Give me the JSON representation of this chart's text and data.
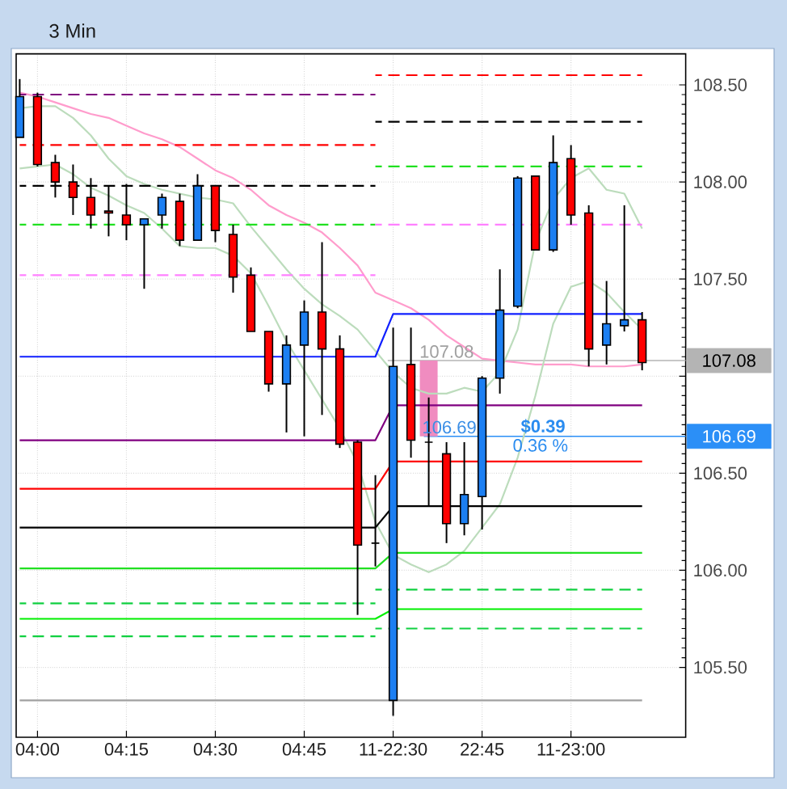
{
  "chart_data": {
    "type": "candlestick",
    "title": "3 Min",
    "categories": [
      null,
      "04:00",
      null,
      null,
      null,
      null,
      "04:15",
      null,
      null,
      null,
      null,
      "04:30",
      null,
      null,
      null,
      null,
      "04:45",
      null,
      null,
      null,
      null,
      "11-22:30",
      null,
      null,
      null,
      null,
      "22:45",
      null,
      null,
      null,
      null,
      "11-23:00",
      null,
      null,
      null,
      null
    ],
    "ohlc": [
      [
        108.23,
        108.53,
        108.23,
        108.44
      ],
      [
        108.44,
        108.46,
        108.08,
        108.09
      ],
      [
        108.1,
        108.14,
        107.92,
        108.0
      ],
      [
        108.0,
        108.09,
        107.83,
        107.92
      ],
      [
        107.92,
        108.02,
        107.76,
        107.83
      ],
      [
        107.85,
        107.98,
        107.72,
        107.84
      ],
      [
        107.83,
        107.99,
        107.7,
        107.78
      ],
      [
        107.78,
        107.81,
        107.45,
        107.81
      ],
      [
        107.83,
        107.94,
        107.76,
        107.92
      ],
      [
        107.9,
        107.94,
        107.67,
        107.7
      ],
      [
        107.7,
        108.04,
        107.7,
        107.98
      ],
      [
        107.98,
        107.98,
        107.69,
        107.75
      ],
      [
        107.73,
        107.78,
        107.43,
        107.51
      ],
      [
        107.52,
        107.56,
        107.23,
        107.23
      ],
      [
        107.23,
        107.23,
        106.92,
        106.96
      ],
      [
        106.96,
        107.21,
        106.71,
        107.16
      ],
      [
        107.16,
        107.39,
        106.69,
        107.33
      ],
      [
        107.33,
        107.69,
        106.8,
        107.14
      ],
      [
        107.14,
        107.21,
        106.63,
        106.65
      ],
      [
        106.66,
        106.67,
        105.77,
        106.13
      ],
      [
        106.14,
        106.49,
        106.02,
        106.14
      ],
      [
        105.33,
        107.25,
        105.25,
        107.05
      ],
      [
        107.06,
        107.25,
        106.58,
        106.67
      ],
      [
        106.66,
        106.89,
        106.33,
        106.66
      ],
      [
        106.6,
        106.66,
        106.14,
        106.24
      ],
      [
        106.24,
        106.66,
        106.18,
        106.39
      ],
      [
        106.38,
        107.0,
        106.21,
        106.99
      ],
      [
        106.99,
        107.55,
        106.91,
        107.34
      ],
      [
        107.36,
        108.03,
        107.35,
        108.02
      ],
      [
        108.03,
        108.03,
        107.65,
        107.65
      ],
      [
        107.65,
        108.24,
        107.64,
        108.1
      ],
      [
        108.12,
        108.19,
        107.78,
        107.83
      ],
      [
        107.84,
        107.88,
        107.05,
        107.14
      ],
      [
        107.16,
        107.49,
        107.06,
        107.27
      ],
      [
        107.26,
        107.88,
        107.23,
        107.29
      ],
      [
        107.29,
        107.33,
        107.03,
        107.07
      ]
    ],
    "colors": [
      "#1c7ff2",
      "#ff0000",
      "#ff0000",
      "#ff0000",
      "#ff0000",
      "#ff0000",
      "#ff0000",
      "#1c7ff2",
      "#1c7ff2",
      "#ff0000",
      "#1c7ff2",
      "#ff0000",
      "#ff0000",
      "#ff0000",
      "#ff0000",
      "#1c7ff2",
      "#1c7ff2",
      "#ff0000",
      "#ff0000",
      "#ff0000",
      "#000000",
      "#1c7ff2",
      "#ff0000",
      "#000000",
      "#ff0000",
      "#1c7ff2",
      "#1c7ff2",
      "#1c7ff2",
      "#1c7ff2",
      "#ff0000",
      "#1c7ff2",
      "#ff0000",
      "#ff0000",
      "#1c7ff2",
      "#1c7ff2",
      "#ff0000"
    ],
    "series": [
      {
        "type": "line",
        "color": "#ff9ccc",
        "line_style": "solid",
        "values": [
          108.46,
          108.44,
          108.41,
          108.38,
          108.35,
          108.33,
          108.29,
          108.25,
          108.22,
          108.18,
          108.12,
          108.06,
          108.02,
          107.96,
          107.88,
          107.83,
          107.79,
          107.74,
          107.66,
          107.57,
          107.43,
          107.39,
          107.35,
          107.29,
          107.21,
          107.15,
          107.09,
          107.08,
          107.07,
          107.06,
          107.06,
          107.06,
          107.05,
          107.05,
          107.05,
          107.06
        ]
      },
      {
        "type": "line",
        "color": "#bcdcbc",
        "line_style": "solid",
        "values": [
          108.38,
          108.39,
          108.39,
          108.33,
          108.24,
          108.12,
          108.03,
          107.99,
          107.96,
          107.94,
          107.92,
          107.91,
          107.89,
          107.77,
          107.66,
          107.55,
          107.45,
          107.37,
          107.31,
          107.24,
          107.13,
          107.02,
          106.94,
          106.91,
          106.91,
          106.94,
          106.92,
          107.02,
          107.24,
          107.69,
          107.91,
          108.02,
          108.07,
          107.96,
          107.94,
          107.76
        ]
      },
      {
        "type": "line",
        "color": "#bcdcbc",
        "line_style": "solid",
        "values": [
          108.07,
          108.08,
          108.09,
          108.04,
          107.97,
          107.93,
          107.88,
          107.84,
          107.76,
          107.67,
          107.66,
          107.66,
          107.62,
          107.53,
          107.36,
          107.18,
          107.03,
          106.88,
          106.73,
          106.55,
          106.25,
          106.08,
          106.03,
          105.99,
          106.03,
          106.1,
          106.22,
          106.34,
          106.58,
          106.9,
          107.27,
          107.46,
          107.49,
          107.43,
          107.33,
          107.24
        ]
      },
      {
        "type": "line",
        "color": "#800080",
        "line_style": "dashed",
        "values": [
          108.45,
          108.45,
          108.45,
          108.45,
          108.45,
          108.45,
          108.45,
          108.45,
          108.45,
          108.45,
          108.45,
          108.45,
          108.45,
          108.45,
          108.45,
          108.45,
          108.45,
          108.45,
          108.45,
          108.45,
          108.45,
          null,
          null,
          null,
          null,
          null,
          null,
          null,
          null,
          null,
          null,
          null,
          null,
          null,
          null,
          null
        ]
      },
      {
        "type": "line",
        "color": "#ff0000",
        "line_style": "dashed",
        "values": [
          108.19,
          108.19,
          108.19,
          108.19,
          108.19,
          108.19,
          108.19,
          108.19,
          108.19,
          108.19,
          108.19,
          108.19,
          108.19,
          108.19,
          108.19,
          108.19,
          108.19,
          108.19,
          108.19,
          108.19,
          108.19,
          null,
          null,
          null,
          null,
          null,
          null,
          null,
          null,
          null,
          null,
          null,
          null,
          null,
          null,
          null
        ]
      },
      {
        "type": "line",
        "color": "#000000",
        "line_style": "dashed",
        "values": [
          107.98,
          107.98,
          107.98,
          107.98,
          107.98,
          107.98,
          107.98,
          107.98,
          107.98,
          107.98,
          107.98,
          107.98,
          107.98,
          107.98,
          107.98,
          107.98,
          107.98,
          107.98,
          107.98,
          107.98,
          107.98,
          null,
          null,
          null,
          null,
          null,
          null,
          null,
          null,
          null,
          null,
          null,
          null,
          null,
          null,
          null
        ]
      },
      {
        "type": "line",
        "color": "#20e020",
        "line_style": "dashed",
        "values": [
          107.78,
          107.78,
          107.78,
          107.78,
          107.78,
          107.78,
          107.78,
          107.78,
          107.78,
          107.78,
          107.78,
          107.78,
          107.78,
          107.78,
          107.78,
          107.78,
          107.78,
          107.78,
          107.78,
          107.78,
          107.78,
          null,
          null,
          null,
          null,
          null,
          null,
          null,
          null,
          null,
          null,
          null,
          null,
          null,
          null,
          null
        ]
      },
      {
        "type": "line",
        "color": "#ff80ff",
        "line_style": "dashed",
        "values": [
          107.52,
          107.52,
          107.52,
          107.52,
          107.52,
          107.52,
          107.52,
          107.52,
          107.52,
          107.52,
          107.52,
          107.52,
          107.52,
          107.52,
          107.52,
          107.52,
          107.52,
          107.52,
          107.52,
          107.52,
          107.52,
          null,
          null,
          null,
          null,
          null,
          null,
          null,
          null,
          null,
          null,
          null,
          null,
          null,
          null,
          null
        ]
      },
      {
        "type": "line",
        "color": "#10d040",
        "line_style": "dashed",
        "values": [
          105.83,
          105.83,
          105.83,
          105.83,
          105.83,
          105.83,
          105.83,
          105.83,
          105.83,
          105.83,
          105.83,
          105.83,
          105.83,
          105.83,
          105.83,
          105.83,
          105.83,
          105.83,
          105.83,
          105.83,
          105.83,
          null,
          null,
          null,
          null,
          null,
          null,
          null,
          null,
          null,
          null,
          null,
          null,
          null,
          null,
          null
        ]
      },
      {
        "type": "line",
        "color": "#10d040",
        "line_style": "dashed",
        "values": [
          105.66,
          105.66,
          105.66,
          105.66,
          105.66,
          105.66,
          105.66,
          105.66,
          105.66,
          105.66,
          105.66,
          105.66,
          105.66,
          105.66,
          105.66,
          105.66,
          105.66,
          105.66,
          105.66,
          105.66,
          105.66,
          null,
          null,
          null,
          null,
          null,
          null,
          null,
          null,
          null,
          null,
          null,
          null,
          null,
          null,
          null
        ]
      },
      {
        "type": "line",
        "color": "#ff0000",
        "line_style": "dashed",
        "values": [
          null,
          null,
          null,
          null,
          null,
          null,
          null,
          null,
          null,
          null,
          null,
          null,
          null,
          null,
          null,
          null,
          null,
          null,
          null,
          null,
          108.55,
          108.55,
          108.55,
          108.55,
          108.55,
          108.55,
          108.55,
          108.55,
          108.55,
          108.55,
          108.55,
          108.55,
          108.55,
          108.55,
          108.55,
          108.55
        ]
      },
      {
        "type": "line",
        "color": "#000000",
        "line_style": "dashed",
        "values": [
          null,
          null,
          null,
          null,
          null,
          null,
          null,
          null,
          null,
          null,
          null,
          null,
          null,
          null,
          null,
          null,
          null,
          null,
          null,
          null,
          108.31,
          108.31,
          108.31,
          108.31,
          108.31,
          108.31,
          108.31,
          108.31,
          108.31,
          108.31,
          108.31,
          108.31,
          108.31,
          108.31,
          108.31,
          108.31
        ]
      },
      {
        "type": "line",
        "color": "#20e020",
        "line_style": "dashed",
        "values": [
          null,
          null,
          null,
          null,
          null,
          null,
          null,
          null,
          null,
          null,
          null,
          null,
          null,
          null,
          null,
          null,
          null,
          null,
          null,
          null,
          108.08,
          108.08,
          108.08,
          108.08,
          108.08,
          108.08,
          108.08,
          108.08,
          108.08,
          108.08,
          108.08,
          108.08,
          108.08,
          108.08,
          108.08,
          108.08
        ]
      },
      {
        "type": "line",
        "color": "#ff80ff",
        "line_style": "dashed",
        "values": [
          null,
          null,
          null,
          null,
          null,
          null,
          null,
          null,
          null,
          null,
          null,
          null,
          null,
          null,
          null,
          null,
          null,
          null,
          null,
          null,
          107.78,
          107.78,
          107.78,
          107.78,
          107.78,
          107.78,
          107.78,
          107.78,
          107.78,
          107.78,
          107.78,
          107.78,
          107.78,
          107.78,
          107.78,
          107.78
        ]
      },
      {
        "type": "line",
        "color": "#10d040",
        "line_style": "dashed",
        "values": [
          null,
          null,
          null,
          null,
          null,
          null,
          null,
          null,
          null,
          null,
          null,
          null,
          null,
          null,
          null,
          null,
          null,
          null,
          null,
          null,
          105.9,
          105.9,
          105.9,
          105.9,
          105.9,
          105.9,
          105.9,
          105.9,
          105.9,
          105.9,
          105.9,
          105.9,
          105.9,
          105.9,
          105.9,
          105.9
        ]
      },
      {
        "type": "line",
        "color": "#10d040",
        "line_style": "dashed",
        "values": [
          null,
          null,
          null,
          null,
          null,
          null,
          null,
          null,
          null,
          null,
          null,
          null,
          null,
          null,
          null,
          null,
          null,
          null,
          null,
          null,
          105.7,
          105.7,
          105.7,
          105.7,
          105.7,
          105.7,
          105.7,
          105.7,
          105.7,
          105.7,
          105.7,
          105.7,
          105.7,
          105.7,
          105.7,
          105.7
        ]
      },
      {
        "type": "line",
        "color": "#1020ff",
        "line_style": "solid",
        "values": [
          107.1,
          107.1,
          107.1,
          107.1,
          107.1,
          107.1,
          107.1,
          107.1,
          107.1,
          107.1,
          107.1,
          107.1,
          107.1,
          107.1,
          107.1,
          107.1,
          107.1,
          107.1,
          107.1,
          107.1,
          107.1,
          107.32,
          107.32,
          107.32,
          107.32,
          107.32,
          107.32,
          107.32,
          107.32,
          107.32,
          107.32,
          107.32,
          107.32,
          107.32,
          107.32,
          107.32
        ]
      },
      {
        "type": "line",
        "color": "#800080",
        "line_style": "solid",
        "values": [
          106.67,
          106.67,
          106.67,
          106.67,
          106.67,
          106.67,
          106.67,
          106.67,
          106.67,
          106.67,
          106.67,
          106.67,
          106.67,
          106.67,
          106.67,
          106.67,
          106.67,
          106.67,
          106.67,
          106.67,
          106.67,
          106.85,
          106.85,
          106.85,
          106.85,
          106.85,
          106.85,
          106.85,
          106.85,
          106.85,
          106.85,
          106.85,
          106.85,
          106.85,
          106.85,
          106.85
        ]
      },
      {
        "type": "line",
        "color": "#ff0000",
        "line_style": "solid",
        "values": [
          106.42,
          106.42,
          106.42,
          106.42,
          106.42,
          106.42,
          106.42,
          106.42,
          106.42,
          106.42,
          106.42,
          106.42,
          106.42,
          106.42,
          106.42,
          106.42,
          106.42,
          106.42,
          106.42,
          106.42,
          106.42,
          106.56,
          106.56,
          106.56,
          106.56,
          106.56,
          106.56,
          106.56,
          106.56,
          106.56,
          106.56,
          106.56,
          106.56,
          106.56,
          106.56,
          106.56
        ]
      },
      {
        "type": "line",
        "color": "#000000",
        "line_style": "solid",
        "values": [
          106.22,
          106.22,
          106.22,
          106.22,
          106.22,
          106.22,
          106.22,
          106.22,
          106.22,
          106.22,
          106.22,
          106.22,
          106.22,
          106.22,
          106.22,
          106.22,
          106.22,
          106.22,
          106.22,
          106.22,
          106.22,
          106.33,
          106.33,
          106.33,
          106.33,
          106.33,
          106.33,
          106.33,
          106.33,
          106.33,
          106.33,
          106.33,
          106.33,
          106.33,
          106.33,
          106.33
        ]
      },
      {
        "type": "line",
        "color": "#20e020",
        "line_style": "solid",
        "values": [
          106.01,
          106.01,
          106.01,
          106.01,
          106.01,
          106.01,
          106.01,
          106.01,
          106.01,
          106.01,
          106.01,
          106.01,
          106.01,
          106.01,
          106.01,
          106.01,
          106.01,
          106.01,
          106.01,
          106.01,
          106.01,
          106.09,
          106.09,
          106.09,
          106.09,
          106.09,
          106.09,
          106.09,
          106.09,
          106.09,
          106.09,
          106.09,
          106.09,
          106.09,
          106.09,
          106.09
        ]
      },
      {
        "type": "line",
        "color": "#00f000",
        "line_style": "solid",
        "values": [
          105.75,
          105.75,
          105.75,
          105.75,
          105.75,
          105.75,
          105.75,
          105.75,
          105.75,
          105.75,
          105.75,
          105.75,
          105.75,
          105.75,
          105.75,
          105.75,
          105.75,
          105.75,
          105.75,
          105.75,
          105.75,
          105.8,
          105.8,
          105.8,
          105.8,
          105.8,
          105.8,
          105.8,
          105.8,
          105.8,
          105.8,
          105.8,
          105.8,
          105.8,
          105.8,
          105.8
        ]
      },
      {
        "type": "line",
        "color": "#a0a0a0",
        "line_style": "solid",
        "values": [
          105.33,
          105.33,
          105.33,
          105.33,
          105.33,
          105.33,
          105.33,
          105.33,
          105.33,
          105.33,
          105.33,
          105.33,
          105.33,
          105.33,
          105.33,
          105.33,
          105.33,
          105.33,
          105.33,
          105.33,
          105.33,
          105.33,
          105.33,
          105.33,
          105.33,
          105.33,
          105.33,
          105.33,
          105.33,
          105.33,
          105.33,
          105.33,
          105.33,
          105.33,
          105.33,
          105.33
        ]
      },
      {
        "type": "bar",
        "color": "#f08cc0",
        "base": [
          null,
          null,
          null,
          null,
          null,
          null,
          null,
          null,
          null,
          null,
          null,
          null,
          null,
          null,
          null,
          null,
          null,
          null,
          null,
          null,
          null,
          null,
          null,
          106.69,
          null,
          null,
          null,
          null,
          null,
          null,
          null,
          null,
          null,
          null,
          null,
          null
        ],
        "values": [
          null,
          null,
          null,
          null,
          null,
          null,
          null,
          null,
          null,
          null,
          null,
          null,
          null,
          null,
          null,
          null,
          null,
          null,
          null,
          null,
          null,
          null,
          null,
          0.39,
          null,
          null,
          null,
          null,
          null,
          null,
          null,
          null,
          null,
          null,
          null,
          null
        ]
      }
    ],
    "ylim": [
      105.14,
      108.66
    ],
    "yticks": [
      {
        "value": 105.5,
        "label": "105.50"
      },
      {
        "value": 106,
        "label": "106.00"
      },
      {
        "value": 106.5,
        "label": "106.50"
      },
      {
        "value": 107,
        "label": null
      },
      {
        "value": 107.5,
        "label": "107.50"
      },
      {
        "value": 108,
        "label": "108.00"
      },
      {
        "value": 108.5,
        "label": "108.50"
      }
    ],
    "grid": true,
    "ref_lines": [
      {
        "axis": "y",
        "value": 107.08,
        "label": "107.08",
        "color": "#b4b4b4"
      },
      {
        "axis": "y",
        "value": 106.69,
        "label": "106.69",
        "color": "#2b8ff7"
      }
    ],
    "annotations": [
      {
        "text": "107.08",
        "y": 107.08
      },
      {
        "text": "106.69",
        "y": 106.69
      },
      {
        "text": "$0.39",
        "y": 106.69
      },
      {
        "text": "0.36 %",
        "y": 106.69
      }
    ]
  }
}
